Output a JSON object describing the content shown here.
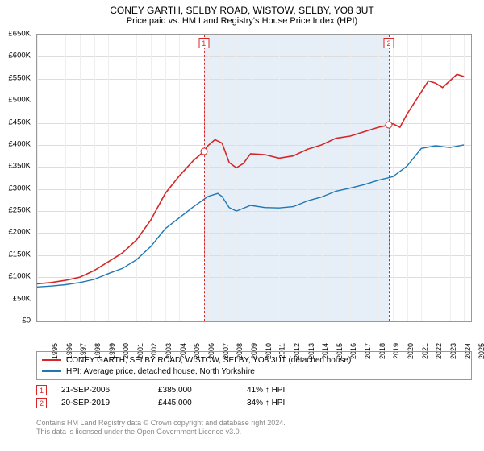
{
  "title": "CONEY GARTH, SELBY ROAD, WISTOW, SELBY, YO8 3UT",
  "subtitle": "Price paid vs. HM Land Registry's House Price Index (HPI)",
  "chart": {
    "type": "line",
    "background_color": "#ffffff",
    "grid_color": "#dddddd",
    "plot_border_color": "#999999",
    "shade_color": "#e6eef7",
    "ylim": [
      0,
      650000
    ],
    "ytick_step": 50000,
    "yticks": [
      "£0",
      "£50K",
      "£100K",
      "£150K",
      "£200K",
      "£250K",
      "£300K",
      "£350K",
      "£400K",
      "£450K",
      "£500K",
      "£550K",
      "£600K",
      "£650K"
    ],
    "xlim": [
      1995,
      2025.5
    ],
    "xticks": [
      1995,
      1996,
      1997,
      1998,
      1999,
      2000,
      2001,
      2002,
      2003,
      2004,
      2005,
      2006,
      2007,
      2008,
      2009,
      2010,
      2011,
      2012,
      2013,
      2014,
      2015,
      2016,
      2017,
      2018,
      2019,
      2020,
      2021,
      2022,
      2023,
      2024,
      2025
    ],
    "shade_x": [
      2006.72,
      2019.72
    ],
    "title_fontsize": 12,
    "subtitle_fontsize": 11,
    "axis_label_fontsize": 9.5,
    "series": [
      {
        "name": "property",
        "label": "CONEY GARTH, SELBY ROAD, WISTOW, SELBY, YO8 3UT (detached house)",
        "color": "#d62728",
        "line_width": 1.6,
        "data": [
          [
            1995,
            85000
          ],
          [
            1996,
            88000
          ],
          [
            1997,
            93000
          ],
          [
            1998,
            100000
          ],
          [
            1999,
            115000
          ],
          [
            2000,
            135000
          ],
          [
            2001,
            155000
          ],
          [
            2002,
            185000
          ],
          [
            2003,
            230000
          ],
          [
            2004,
            290000
          ],
          [
            2005,
            330000
          ],
          [
            2006,
            365000
          ],
          [
            2006.72,
            385000
          ],
          [
            2007,
            398000
          ],
          [
            2007.5,
            412000
          ],
          [
            2008,
            404000
          ],
          [
            2008.5,
            360000
          ],
          [
            2009,
            348000
          ],
          [
            2009.5,
            358000
          ],
          [
            2010,
            380000
          ],
          [
            2011,
            378000
          ],
          [
            2012,
            370000
          ],
          [
            2013,
            375000
          ],
          [
            2014,
            390000
          ],
          [
            2015,
            400000
          ],
          [
            2016,
            415000
          ],
          [
            2017,
            420000
          ],
          [
            2018,
            430000
          ],
          [
            2019,
            440000
          ],
          [
            2019.72,
            445000
          ],
          [
            2020,
            448000
          ],
          [
            2020.5,
            440000
          ],
          [
            2021,
            470000
          ],
          [
            2022,
            520000
          ],
          [
            2022.5,
            545000
          ],
          [
            2023,
            540000
          ],
          [
            2023.5,
            530000
          ],
          [
            2024,
            545000
          ],
          [
            2024.5,
            560000
          ],
          [
            2025,
            555000
          ]
        ]
      },
      {
        "name": "hpi",
        "label": "HPI: Average price, detached house, North Yorkshire",
        "color": "#1f77b4",
        "line_width": 1.4,
        "data": [
          [
            1995,
            78000
          ],
          [
            1996,
            80000
          ],
          [
            1997,
            83000
          ],
          [
            1998,
            88000
          ],
          [
            1999,
            95000
          ],
          [
            2000,
            108000
          ],
          [
            2001,
            120000
          ],
          [
            2002,
            140000
          ],
          [
            2003,
            170000
          ],
          [
            2004,
            210000
          ],
          [
            2005,
            235000
          ],
          [
            2006,
            260000
          ],
          [
            2007,
            283000
          ],
          [
            2007.7,
            290000
          ],
          [
            2008,
            283000
          ],
          [
            2008.5,
            258000
          ],
          [
            2009,
            250000
          ],
          [
            2010,
            263000
          ],
          [
            2011,
            258000
          ],
          [
            2012,
            257000
          ],
          [
            2013,
            260000
          ],
          [
            2014,
            273000
          ],
          [
            2015,
            282000
          ],
          [
            2016,
            295000
          ],
          [
            2017,
            302000
          ],
          [
            2018,
            310000
          ],
          [
            2019,
            320000
          ],
          [
            2020,
            328000
          ],
          [
            2021,
            352000
          ],
          [
            2022,
            392000
          ],
          [
            2023,
            398000
          ],
          [
            2024,
            394000
          ],
          [
            2025,
            400000
          ]
        ]
      }
    ],
    "markers": [
      {
        "num": "1",
        "x": 2006.72,
        "y": 385000
      },
      {
        "num": "2",
        "x": 2019.72,
        "y": 445000
      }
    ]
  },
  "legend": {
    "items": [
      {
        "color": "#d62728",
        "label": "CONEY GARTH, SELBY ROAD, WISTOW, SELBY, YO8 3UT (detached house)"
      },
      {
        "color": "#1f77b4",
        "label": "HPI: Average price, detached house, North Yorkshire"
      }
    ]
  },
  "sales": [
    {
      "num": "1",
      "date": "21-SEP-2006",
      "price": "£385,000",
      "diff": "41% ↑ HPI"
    },
    {
      "num": "2",
      "date": "20-SEP-2019",
      "price": "£445,000",
      "diff": "34% ↑ HPI"
    }
  ],
  "attribution": {
    "line1": "Contains HM Land Registry data © Crown copyright and database right 2024.",
    "line2": "This data is licensed under the Open Government Licence v3.0."
  }
}
